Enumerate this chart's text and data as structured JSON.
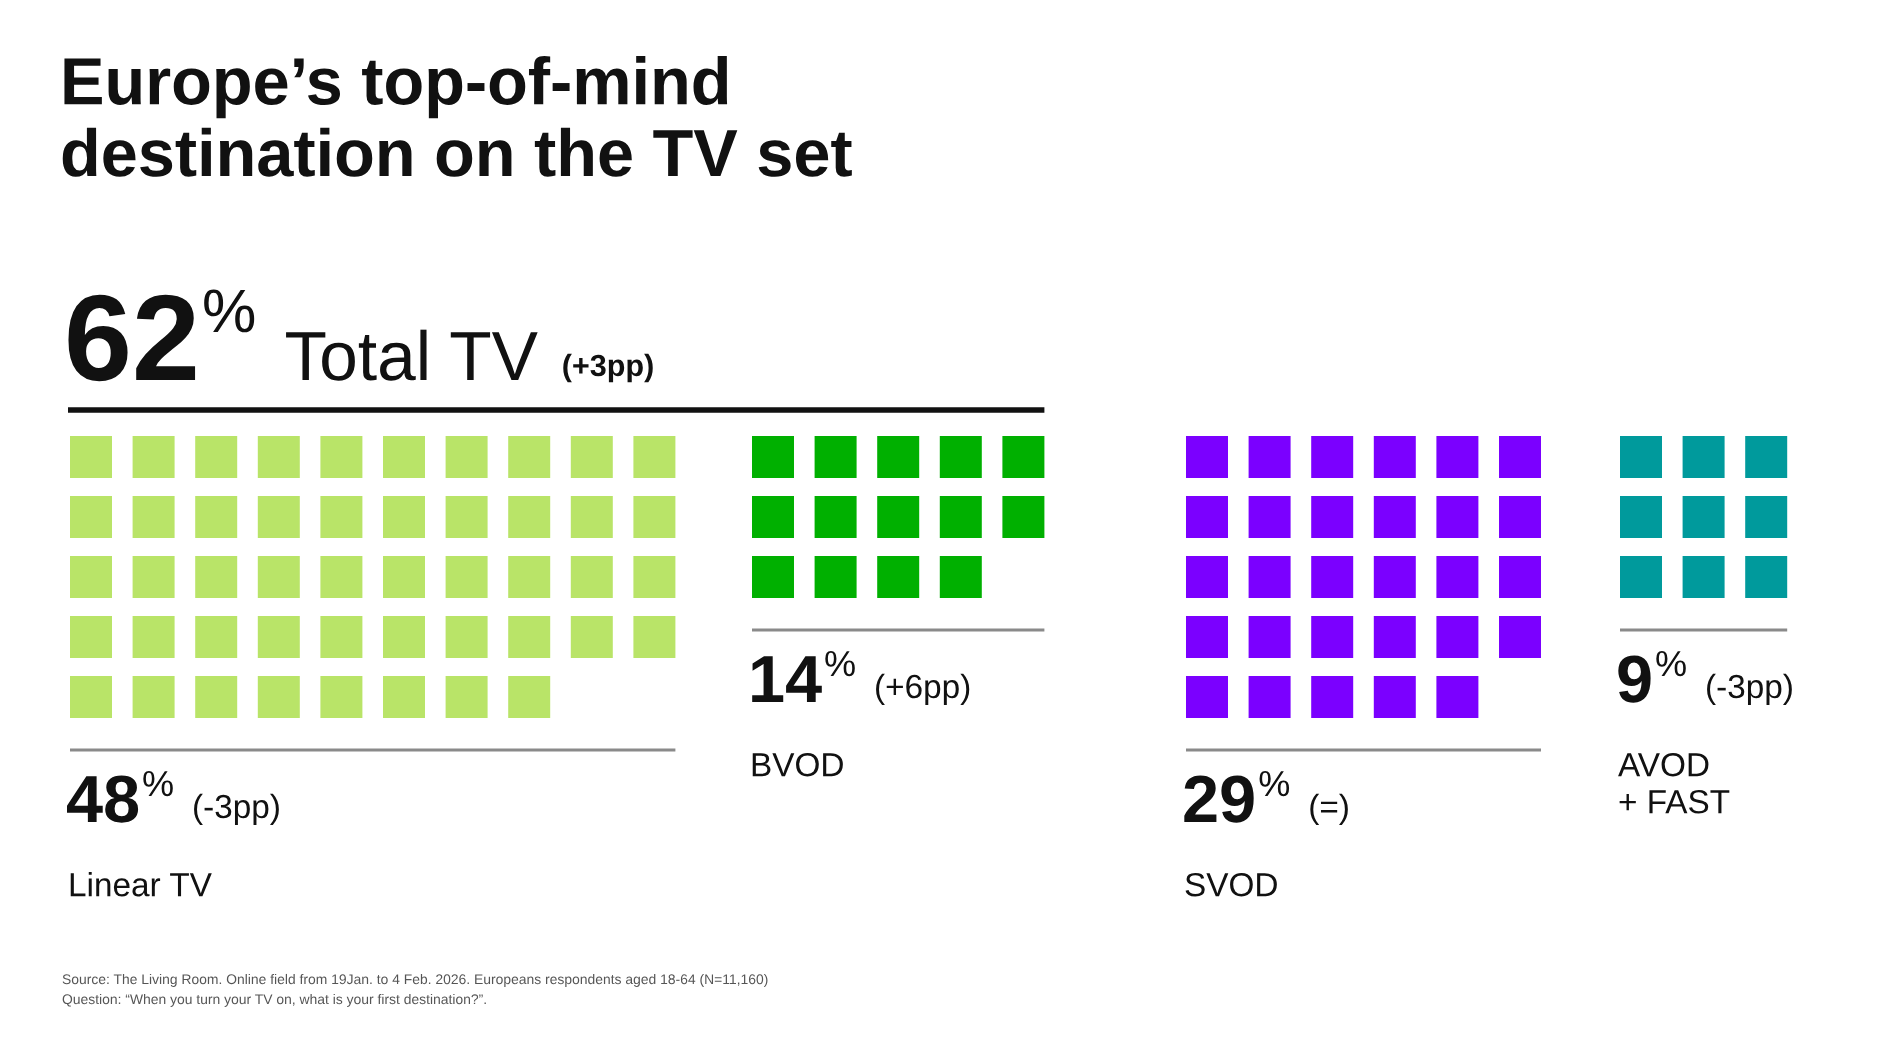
{
  "chart_data": {
    "type": "other",
    "title": "Europe’s top-of-mind\ndestination on the TV set",
    "categories": [
      "Linear TV",
      "BVOD",
      "SVOD",
      "AVOD\n+ FAST"
    ],
    "values": [
      48,
      14,
      29,
      9
    ],
    "colors": [
      "#b9e468",
      "#00b000",
      "#7b00ff",
      "#009a9c"
    ],
    "value_labels": [
      "48%",
      "14%",
      "29%",
      "9%"
    ],
    "annotations": [
      "62%",
      "Total TV",
      "(+3pp)",
      "(-3pp)",
      "(+6pp)",
      "(=)",
      "(-3pp)",
      "Source: The Living Room. Online field from 19Jan. to 4 Feb. 2026. Europeans respondents aged 18-64 (N=11,160)",
      "Question: “When you turn your TV on, what is your first destination?”."
    ]
  }
}
